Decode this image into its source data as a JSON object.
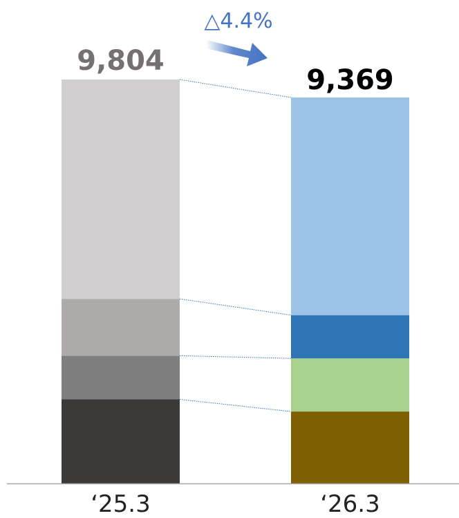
{
  "chart_data": {
    "type": "bar",
    "stacked": true,
    "categories": [
      "‘25.3",
      "‘26.3"
    ],
    "totals": [
      "9,804",
      "9,369"
    ],
    "change_label": "△4.4%",
    "stacks": [
      {
        "category": "‘25.3",
        "total": 9804,
        "segments": [
          {
            "value": 2040,
            "color": "#3c3a38"
          },
          {
            "value": 1060,
            "color": "#7f7f7f"
          },
          {
            "value": 1380,
            "color": "#aeaaaa"
          },
          {
            "value": 5324,
            "color": "#d0cece"
          }
        ]
      },
      {
        "category": "‘26.3",
        "total": 9369,
        "segments": [
          {
            "value": 1745,
            "color": "#7f6000"
          },
          {
            "value": 1290,
            "color": "#a9d18e"
          },
          {
            "value": 1050,
            "color": "#2e75b6"
          },
          {
            "value": 5284,
            "color": "#9dc3e6"
          }
        ]
      }
    ],
    "colors": {
      "total_25": "#767171",
      "total_26": "#000000",
      "arrow": "#4472c4",
      "connector": "#2e75b6",
      "axis": "#a6a6a6"
    },
    "legend": "none",
    "grid": false
  }
}
